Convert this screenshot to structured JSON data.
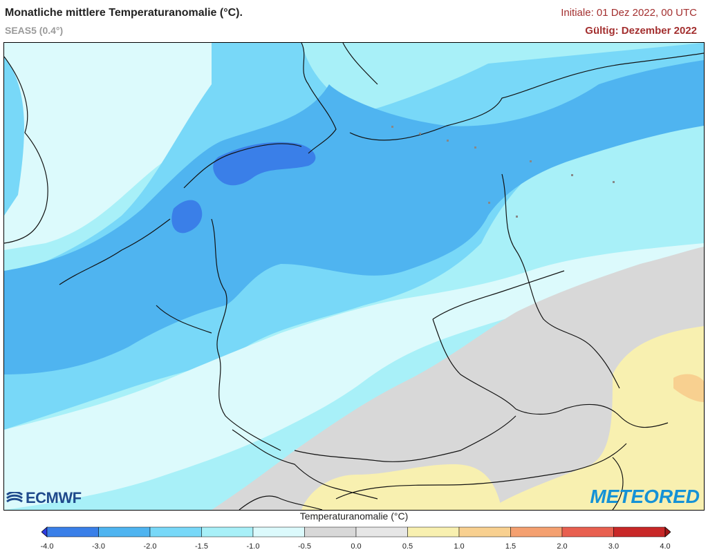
{
  "header": {
    "title": "Monatliche mittlere Temperaturanomalie (°C).",
    "subtitle": "SEAS5 (0.4°)",
    "init": "Initiale: 01 Dez 2022, 00 UTC",
    "valid": "Gültig: Dezember 2022"
  },
  "logos": {
    "ecmwf": "ECMWF",
    "meteored": "METEORED"
  },
  "colorbar": {
    "label": "Temperaturanomalie (°C)",
    "ticks": [
      "-4.0",
      "-3.0",
      "-2.0",
      "-1.5",
      "-1.0",
      "-0.5",
      "0.0",
      "0.5",
      "1.0",
      "1.5",
      "2.0",
      "3.0",
      "4.0"
    ],
    "colors": [
      "#2e3ce0",
      "#3a7fe8",
      "#4fb4f0",
      "#78d8f8",
      "#a8f0f8",
      "#dcfafc",
      "#d8d8d8",
      "#e6e6e6",
      "#f8f0b0",
      "#f8d090",
      "#f4a070",
      "#e86050",
      "#c82828",
      "#a01818"
    ]
  },
  "map": {
    "colors": {
      "c_m25": "#3a7fe8",
      "c_m20": "#4fb4f0",
      "c_m15": "#78d8f8",
      "c_m10": "#a8f0f8",
      "c_m05": "#dcfafc",
      "c_0": "#d8d8d8",
      "c_05": "#f8f0b0",
      "c_10": "#f8d090",
      "border": "#111111"
    }
  }
}
